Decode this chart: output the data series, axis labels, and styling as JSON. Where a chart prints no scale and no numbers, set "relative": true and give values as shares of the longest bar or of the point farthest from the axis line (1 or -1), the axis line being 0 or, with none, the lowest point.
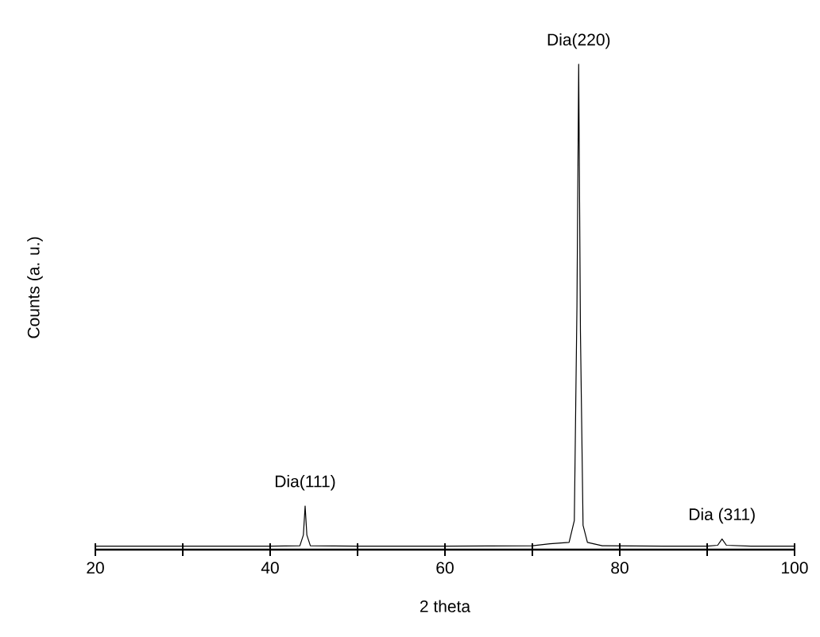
{
  "chart_data": {
    "type": "line",
    "relative": true,
    "xlabel": "2 theta",
    "ylabel": "Counts (a. u.)",
    "xlim": [
      20,
      100
    ],
    "xticks": [
      20,
      {
        "value": 30,
        "label": null
      },
      40,
      {
        "value": 50,
        "label": null
      },
      60,
      {
        "value": 70,
        "label": null
      },
      80,
      {
        "value": 90,
        "label": null
      },
      100
    ],
    "series": [
      {
        "color": "#000000",
        "x": [
          20,
          30,
          40,
          43.4,
          43.8,
          44.0,
          44.2,
          44.6,
          50,
          60,
          70,
          72,
          74.2,
          74.8,
          75.1,
          75.3,
          75.5,
          75.8,
          76.3,
          78,
          85,
          90,
          91.2,
          91.7,
          92.2,
          95,
          100
        ],
        "values": [
          0.007,
          0.007,
          0.007,
          0.008,
          0.03,
          0.09,
          0.03,
          0.008,
          0.007,
          0.007,
          0.008,
          0.012,
          0.015,
          0.06,
          0.5,
          1.0,
          0.45,
          0.05,
          0.015,
          0.008,
          0.007,
          0.007,
          0.009,
          0.022,
          0.009,
          0.007,
          0.007
        ]
      }
    ],
    "annotations": [
      {
        "text": "Dia(111)",
        "x": 44.0,
        "y": 0.09
      },
      {
        "text": "Dia(220)",
        "x": 75.3,
        "y": 1.0
      },
      {
        "text": "Dia (311)",
        "x": 91.7,
        "y": 0.022
      }
    ]
  }
}
